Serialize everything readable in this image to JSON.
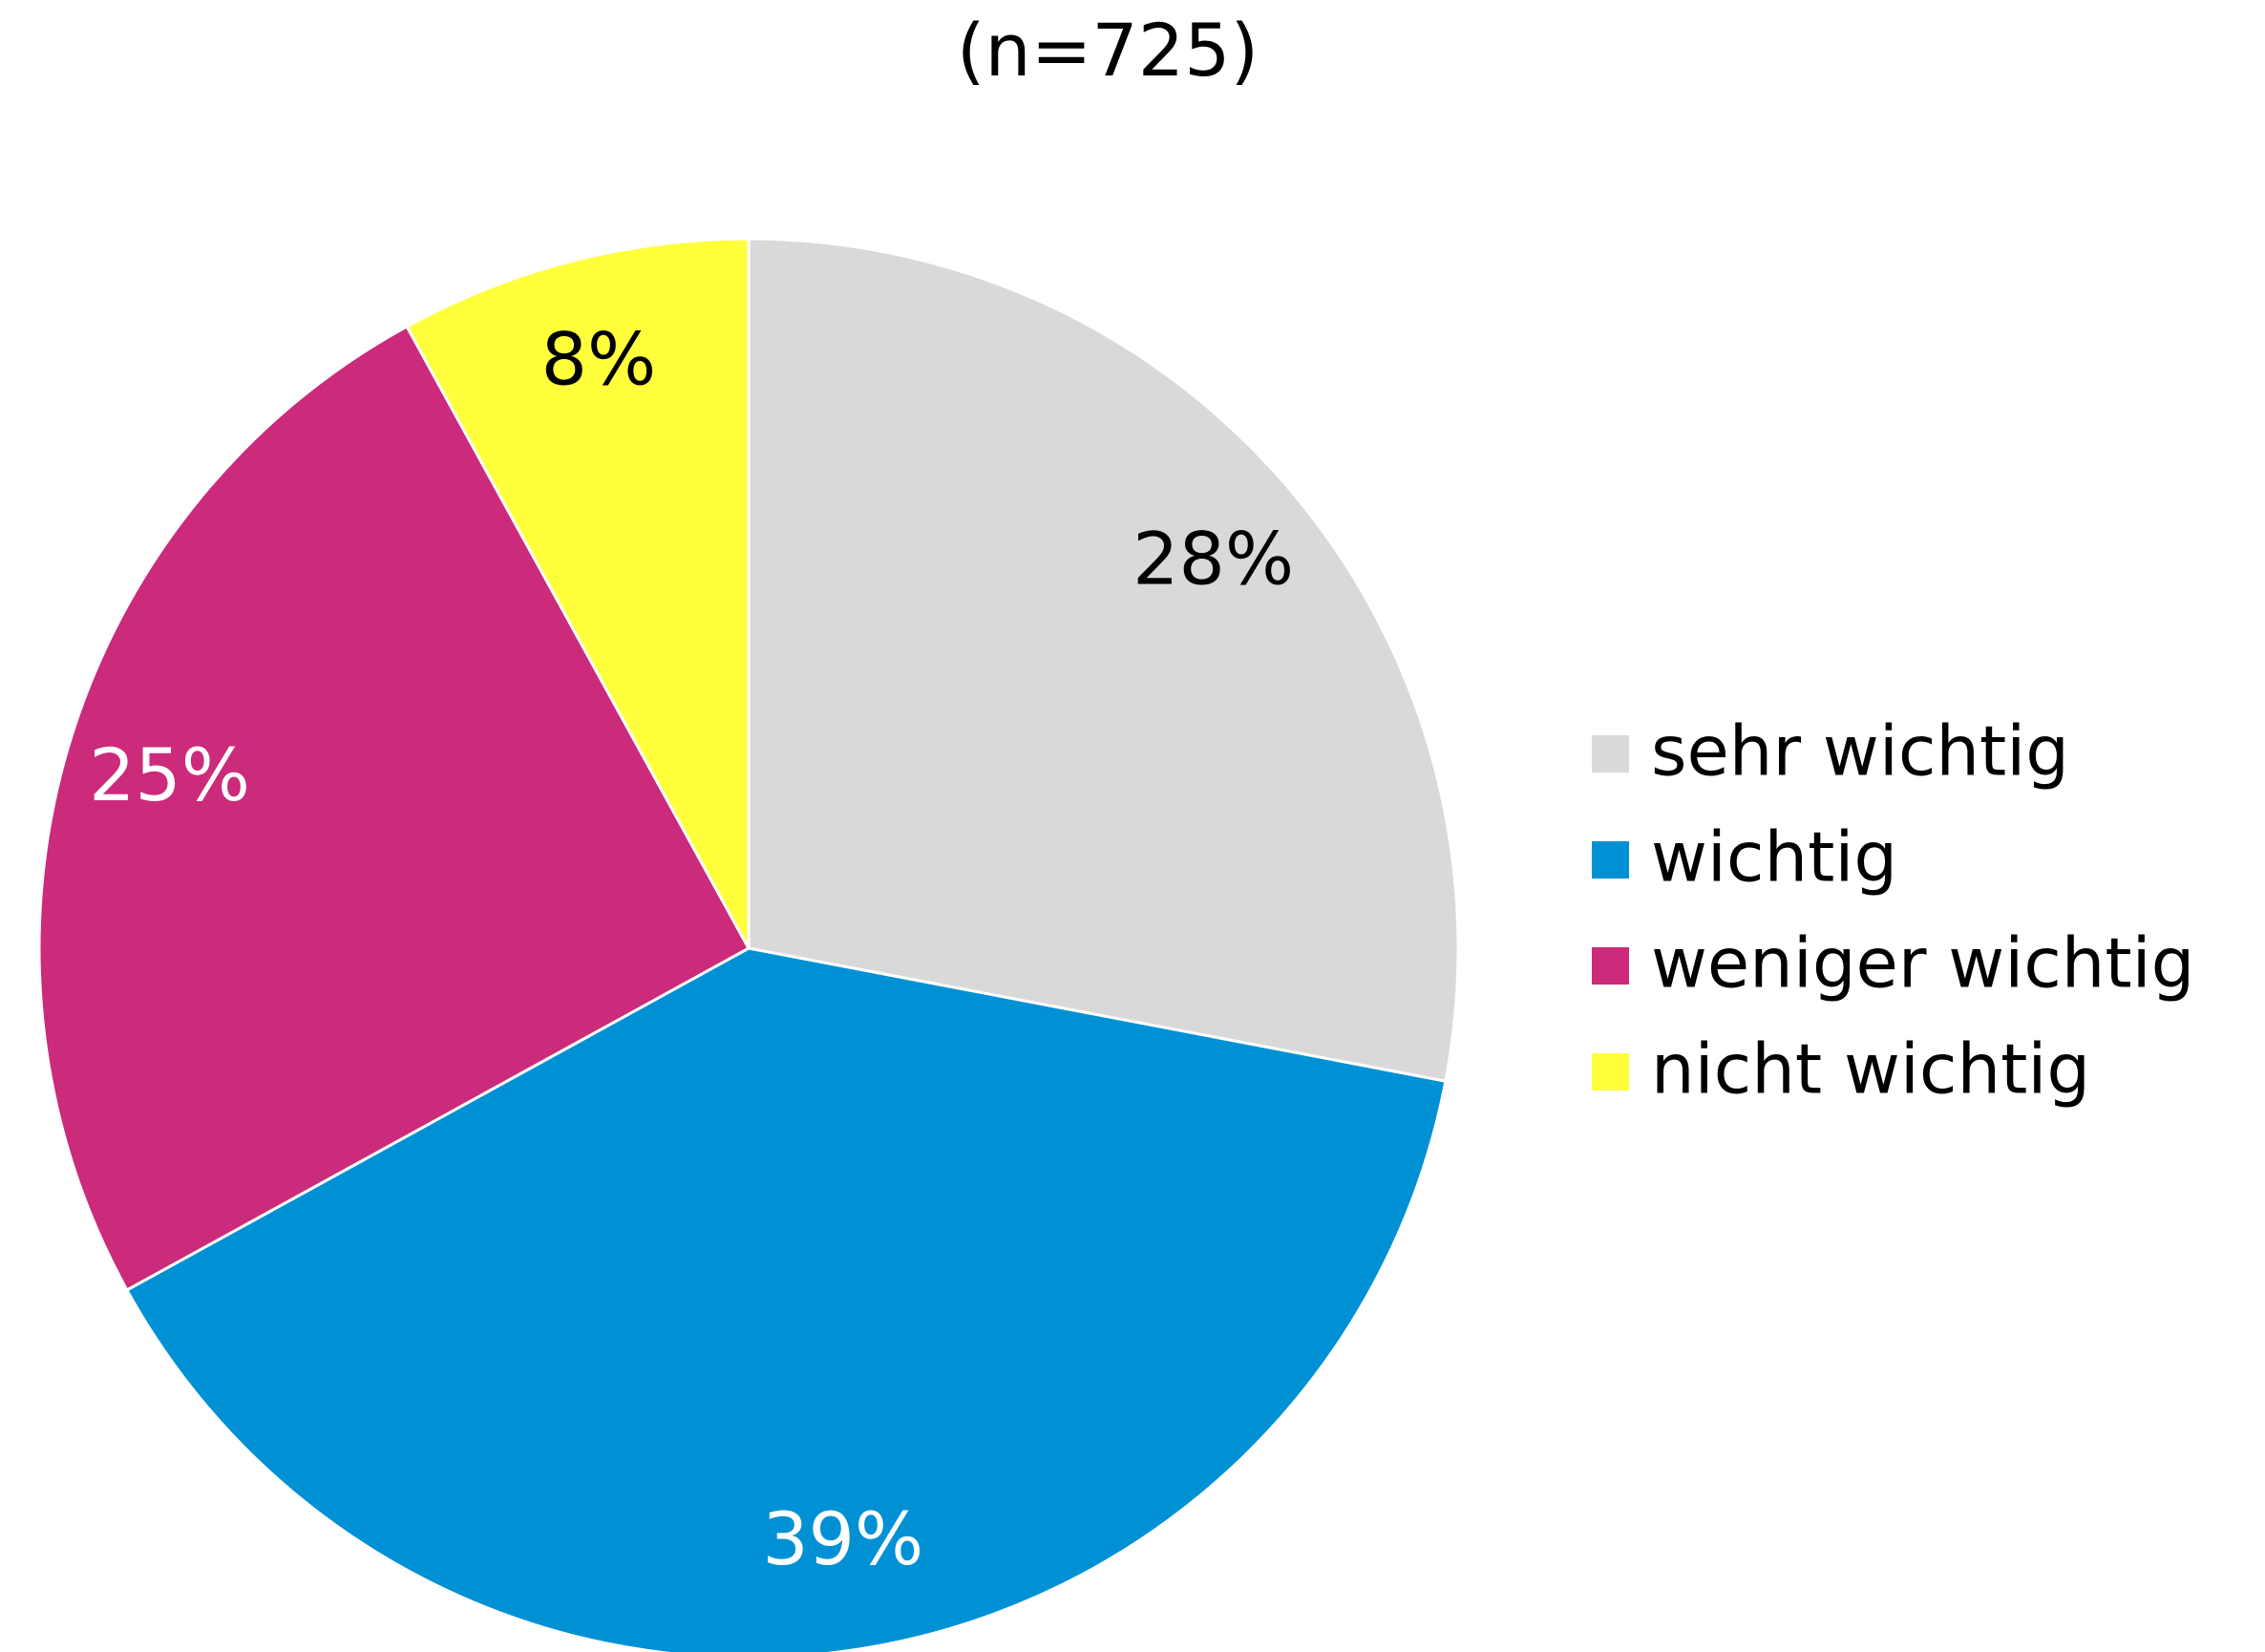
{
  "chart_data": {
    "type": "pie",
    "title": "(n=725)",
    "categories": [
      "sehr wichtig",
      "wichtig",
      "weniger wichtig",
      "nicht wichtig"
    ],
    "values": [
      28,
      39,
      25,
      8
    ],
    "value_labels": [
      "28%",
      "39%",
      "25%",
      "8%"
    ],
    "colors": [
      "#d9d9d9",
      "#0091d5",
      "#cc2a7a",
      "#ffff3c"
    ],
    "legend": "right"
  }
}
